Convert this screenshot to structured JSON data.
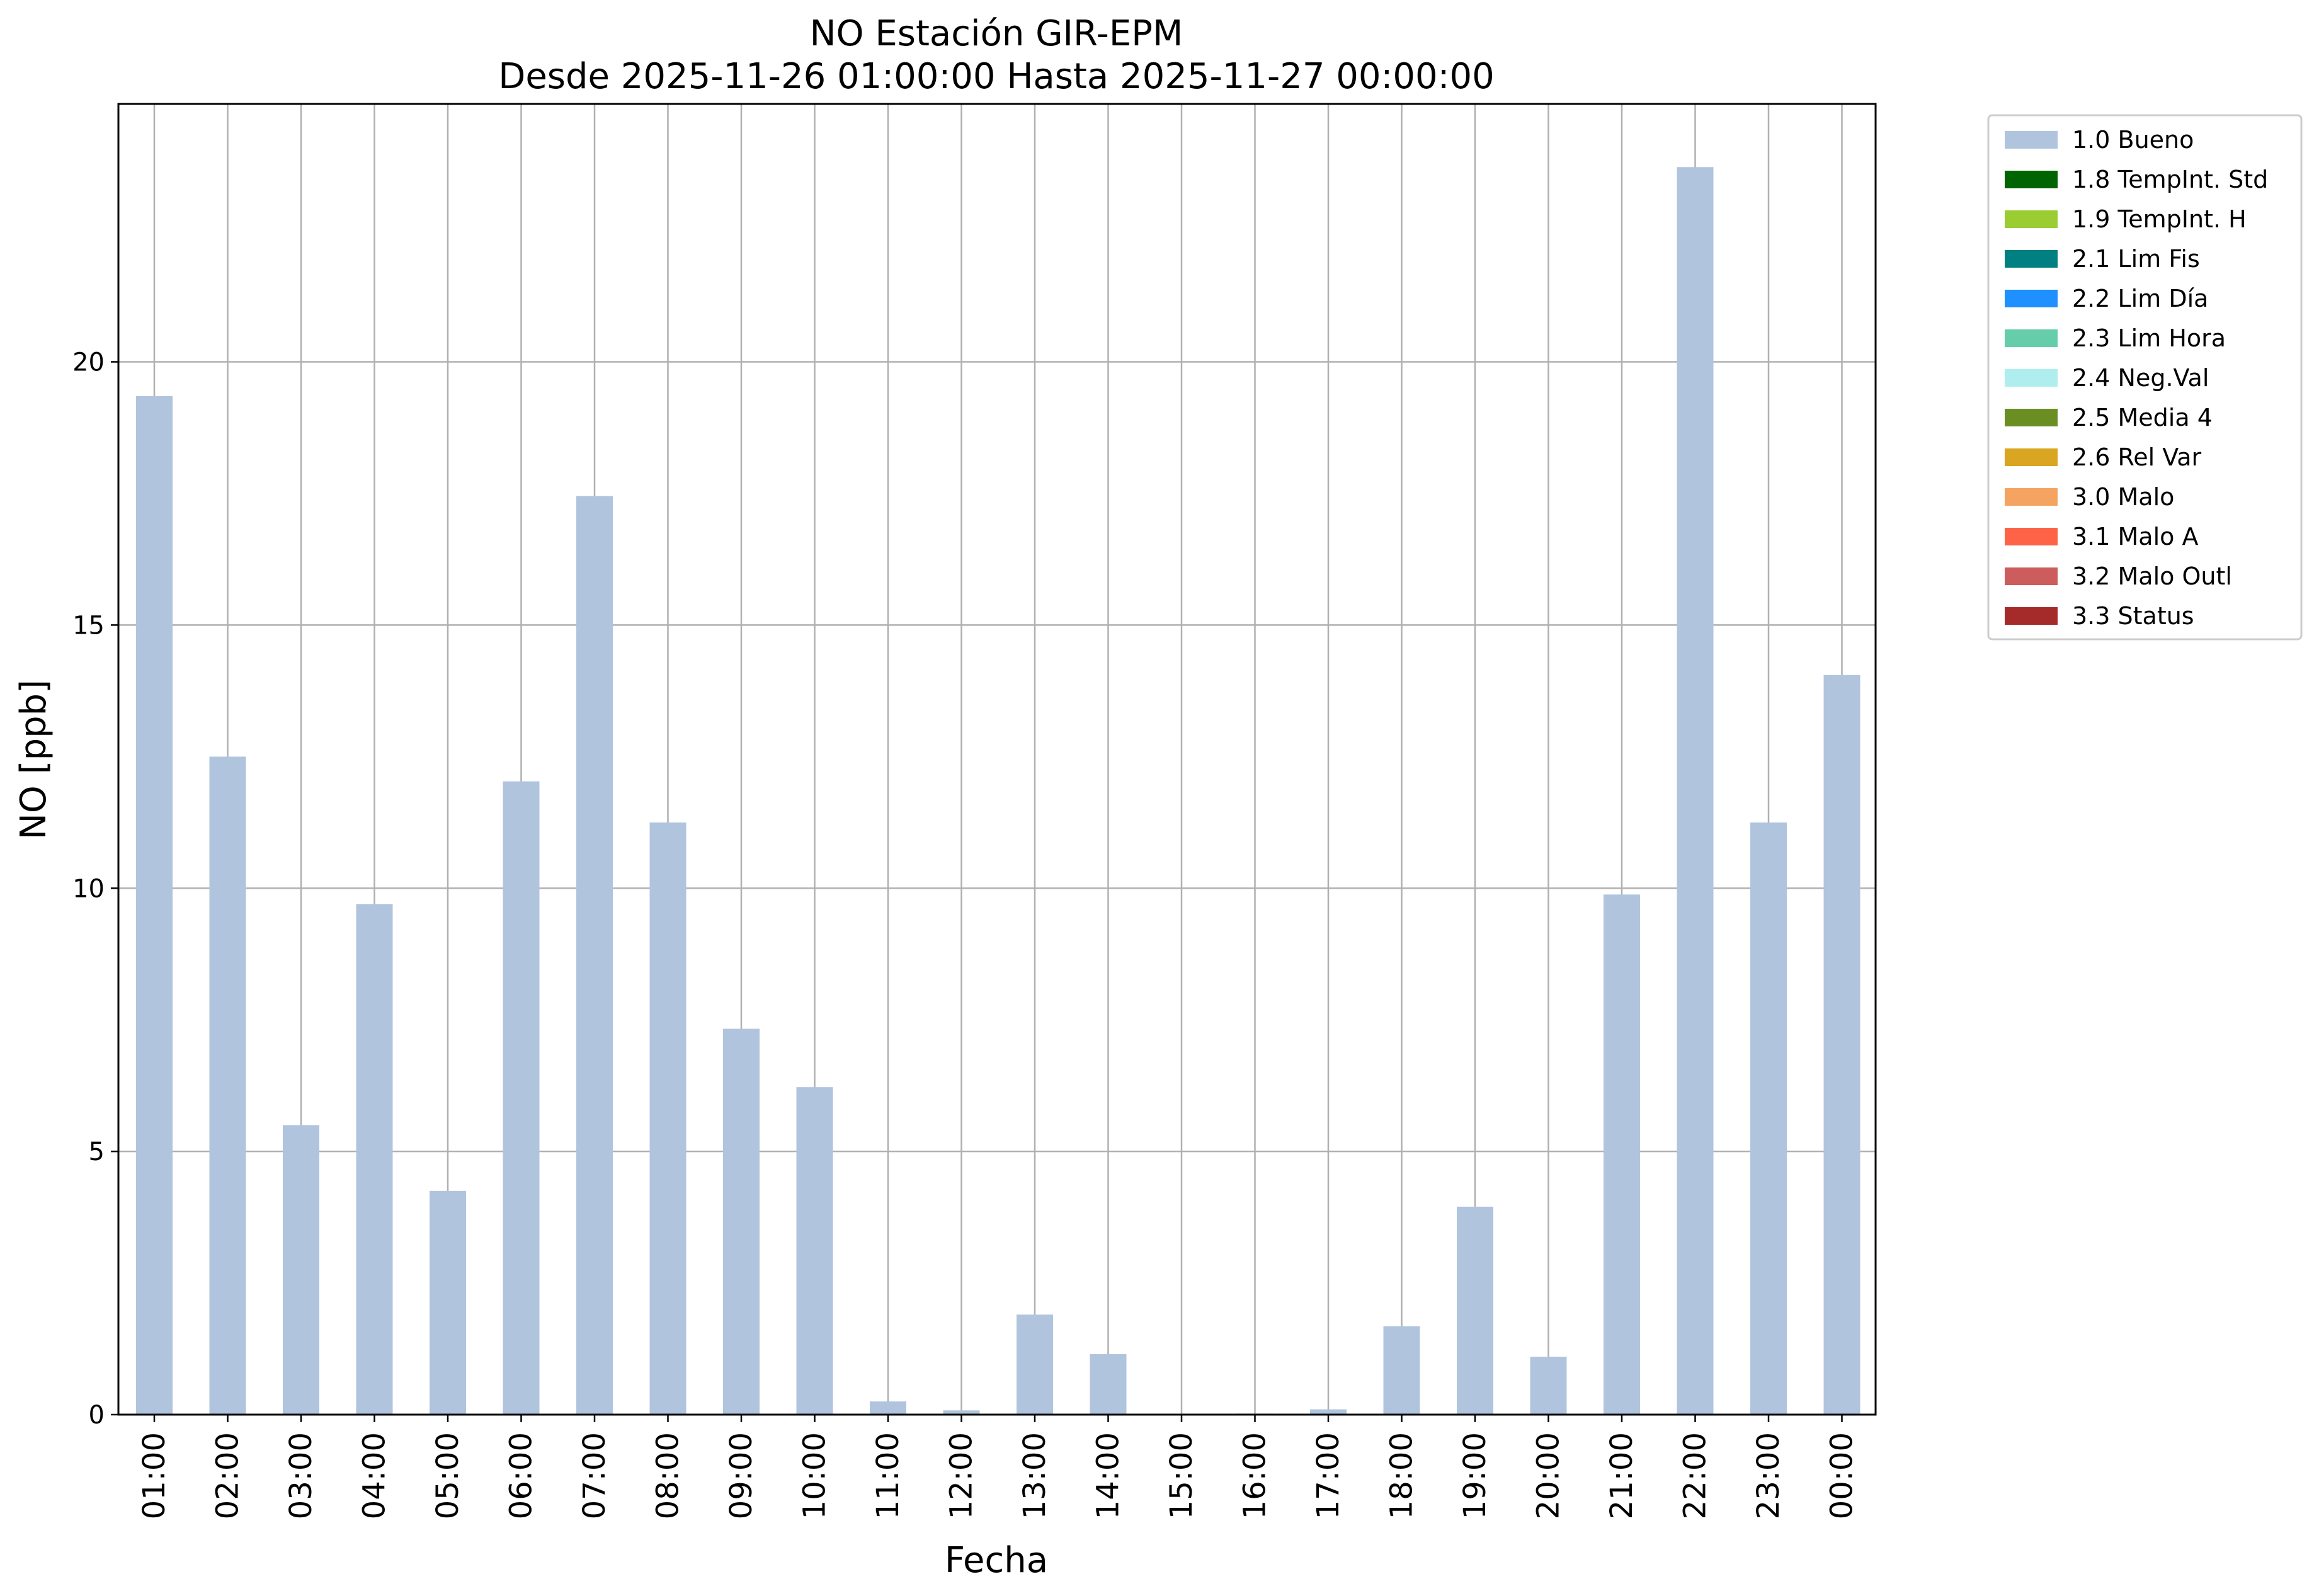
{
  "chart_data": {
    "type": "bar",
    "title": "NO Estación GIR-EPM",
    "subtitle": "Desde 2025-11-26 01:00:00 Hasta 2025-11-27 00:00:00",
    "xlabel": "Fecha",
    "ylabel": "NO [ppb]",
    "ylim": [
      0,
      24.9
    ],
    "yticks": [
      0,
      5,
      10,
      15,
      20
    ],
    "grid": true,
    "legend_position": "outside-top-right",
    "categories": [
      "01:00",
      "02:00",
      "03:00",
      "04:00",
      "05:00",
      "06:00",
      "07:00",
      "08:00",
      "09:00",
      "10:00",
      "11:00",
      "12:00",
      "13:00",
      "14:00",
      "15:00",
      "16:00",
      "17:00",
      "18:00",
      "19:00",
      "20:00",
      "21:00",
      "22:00",
      "23:00",
      "00:00"
    ],
    "series": [
      {
        "name": "1.0 Bueno",
        "color": "#b0c4de",
        "values": [
          19.35,
          12.5,
          5.5,
          9.7,
          4.25,
          12.03,
          17.45,
          11.25,
          7.33,
          6.22,
          0.25,
          0.08,
          1.9,
          1.15,
          0.0,
          0.02,
          0.1,
          1.68,
          3.95,
          1.1,
          9.88,
          23.7,
          11.25,
          14.05
        ]
      }
    ],
    "legend": [
      {
        "label": "1.0 Bueno",
        "color": "#b0c4de"
      },
      {
        "label": "1.8 TempInt. Std",
        "color": "#006400"
      },
      {
        "label": "1.9 TempInt. H",
        "color": "#9acd32"
      },
      {
        "label": "2.1 Lim Fis",
        "color": "#008080"
      },
      {
        "label": "2.2 Lim Día",
        "color": "#1e90ff"
      },
      {
        "label": "2.3 Lim Hora",
        "color": "#66cdaa"
      },
      {
        "label": "2.4 Neg.Val",
        "color": "#afeeee"
      },
      {
        "label": "2.5 Media 4",
        "color": "#6b8e23"
      },
      {
        "label": "2.6 Rel Var",
        "color": "#daa520"
      },
      {
        "label": "3.0 Malo",
        "color": "#f4a460"
      },
      {
        "label": "3.1 Malo A",
        "color": "#ff6347"
      },
      {
        "label": "3.2 Malo Outl",
        "color": "#cd5c5c"
      },
      {
        "label": "3.3 Status",
        "color": "#a52a2a"
      }
    ]
  }
}
